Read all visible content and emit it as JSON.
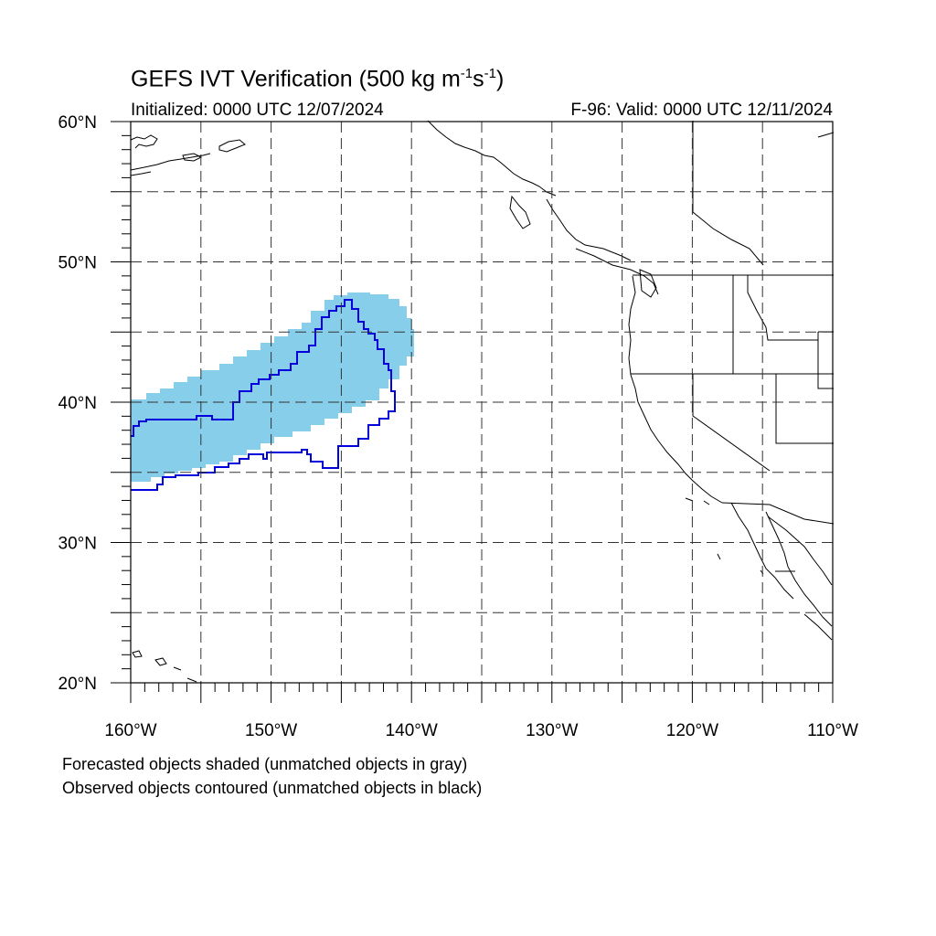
{
  "title": {
    "main": "GEFS IVT Verification (500 kg m",
    "exp1": "-1",
    "mid": "s",
    "exp2": "-1",
    "close": ")"
  },
  "initialized": "Initialized: 0000 UTC 12/07/2024",
  "valid": "F-96: Valid: 0000 UTC 12/11/2024",
  "captions": [
    "Forecasted objects shaded (unmatched objects in gray)",
    "Observed objects contoured (unmatched objects in black)"
  ],
  "map": {
    "lon_range": [
      -160,
      -110
    ],
    "lat_range": [
      20,
      60
    ],
    "lat_labels": [
      "20°N",
      "30°N",
      "40°N",
      "50°N",
      "60°N"
    ],
    "lon_labels": [
      "160°W",
      "150°W",
      "140°W",
      "130°W",
      "120°W",
      "110°W"
    ],
    "grid_style": "dashed, every 5 degrees",
    "forecast_color": "#87CEEB",
    "observed_color": "#0000DD",
    "coast_color": "#000000"
  }
}
